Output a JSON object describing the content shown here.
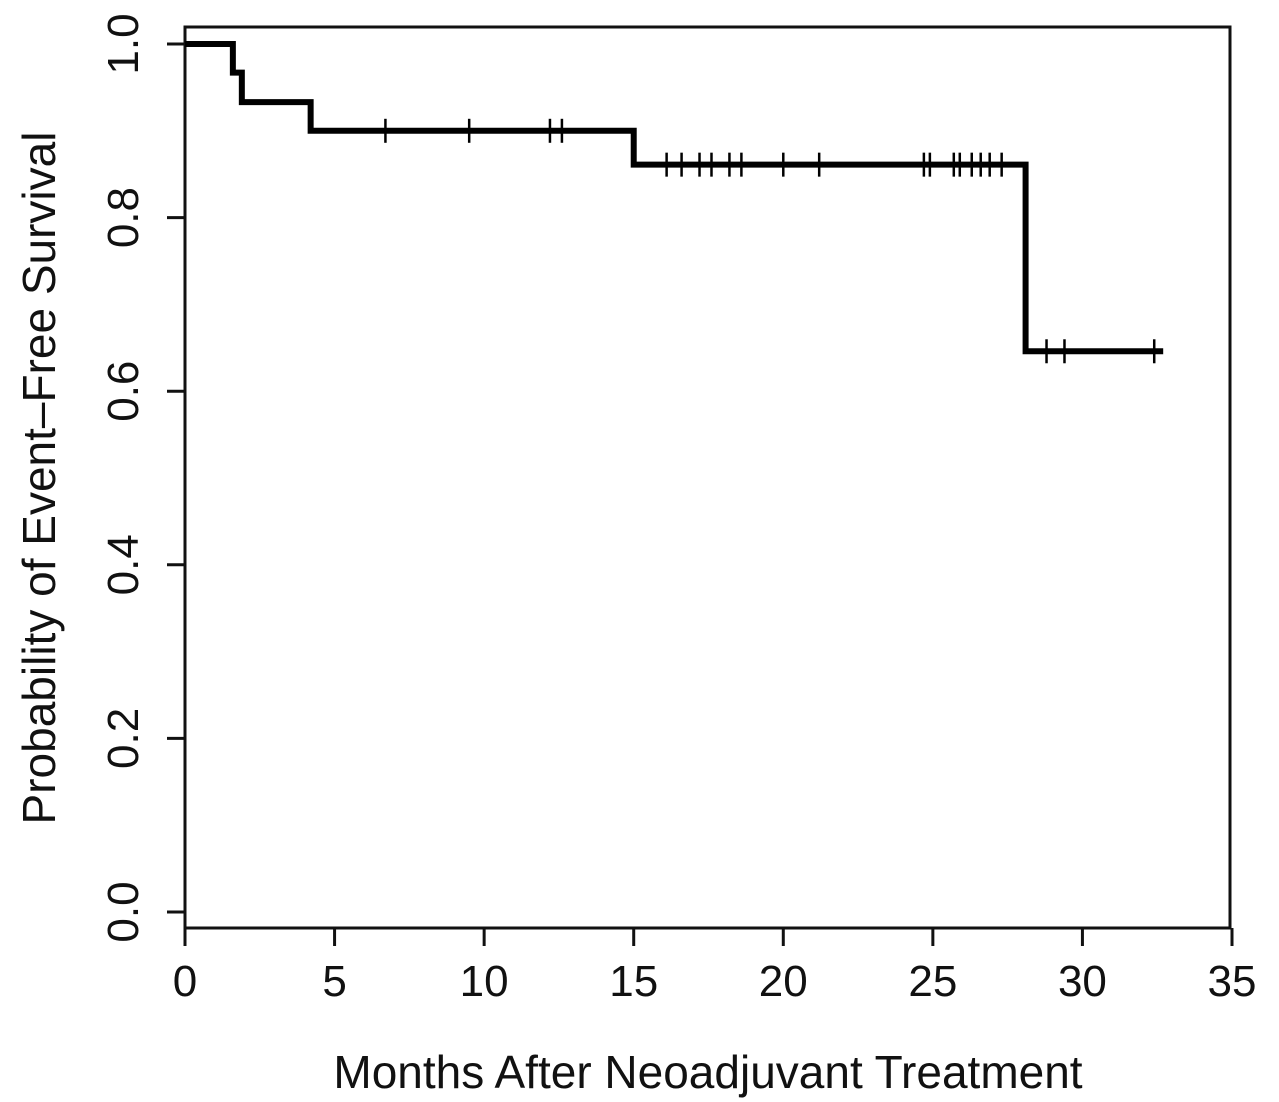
{
  "chart_data": {
    "type": "line",
    "subtype": "kaplan-meier-step",
    "title": "",
    "xlabel": "Months After Neoadjuvant Treatment",
    "ylabel": "Probability of Event–Free Survival",
    "xlim": [
      0,
      35
    ],
    "ylim": [
      0,
      1
    ],
    "xticks": [
      0,
      5,
      10,
      15,
      20,
      25,
      30,
      35
    ],
    "yticks": [
      0.0,
      0.2,
      0.4,
      0.6,
      0.8,
      1.0
    ],
    "xtick_labels": [
      "0",
      "5",
      "10",
      "15",
      "20",
      "25",
      "30",
      "35"
    ],
    "ytick_labels": [
      "0.0",
      "0.2",
      "0.4",
      "0.6",
      "0.8",
      "1.0"
    ],
    "grid": false,
    "legend": "none",
    "color": "#000000",
    "steps": [
      {
        "x": 0,
        "y": 1.0
      },
      {
        "x": 1.6,
        "y": 0.967
      },
      {
        "x": 1.9,
        "y": 0.933
      },
      {
        "x": 4.2,
        "y": 0.9
      },
      {
        "x": 15.0,
        "y": 0.861
      },
      {
        "x": 28.1,
        "y": 0.646
      }
    ],
    "end_x": 32.7,
    "censored": [
      6.7,
      9.5,
      12.2,
      12.6,
      16.1,
      16.6,
      17.2,
      17.6,
      18.2,
      18.6,
      20.0,
      21.2,
      24.7,
      24.9,
      25.7,
      25.9,
      26.3,
      26.6,
      26.9,
      27.3,
      28.8,
      29.4,
      32.4
    ]
  }
}
